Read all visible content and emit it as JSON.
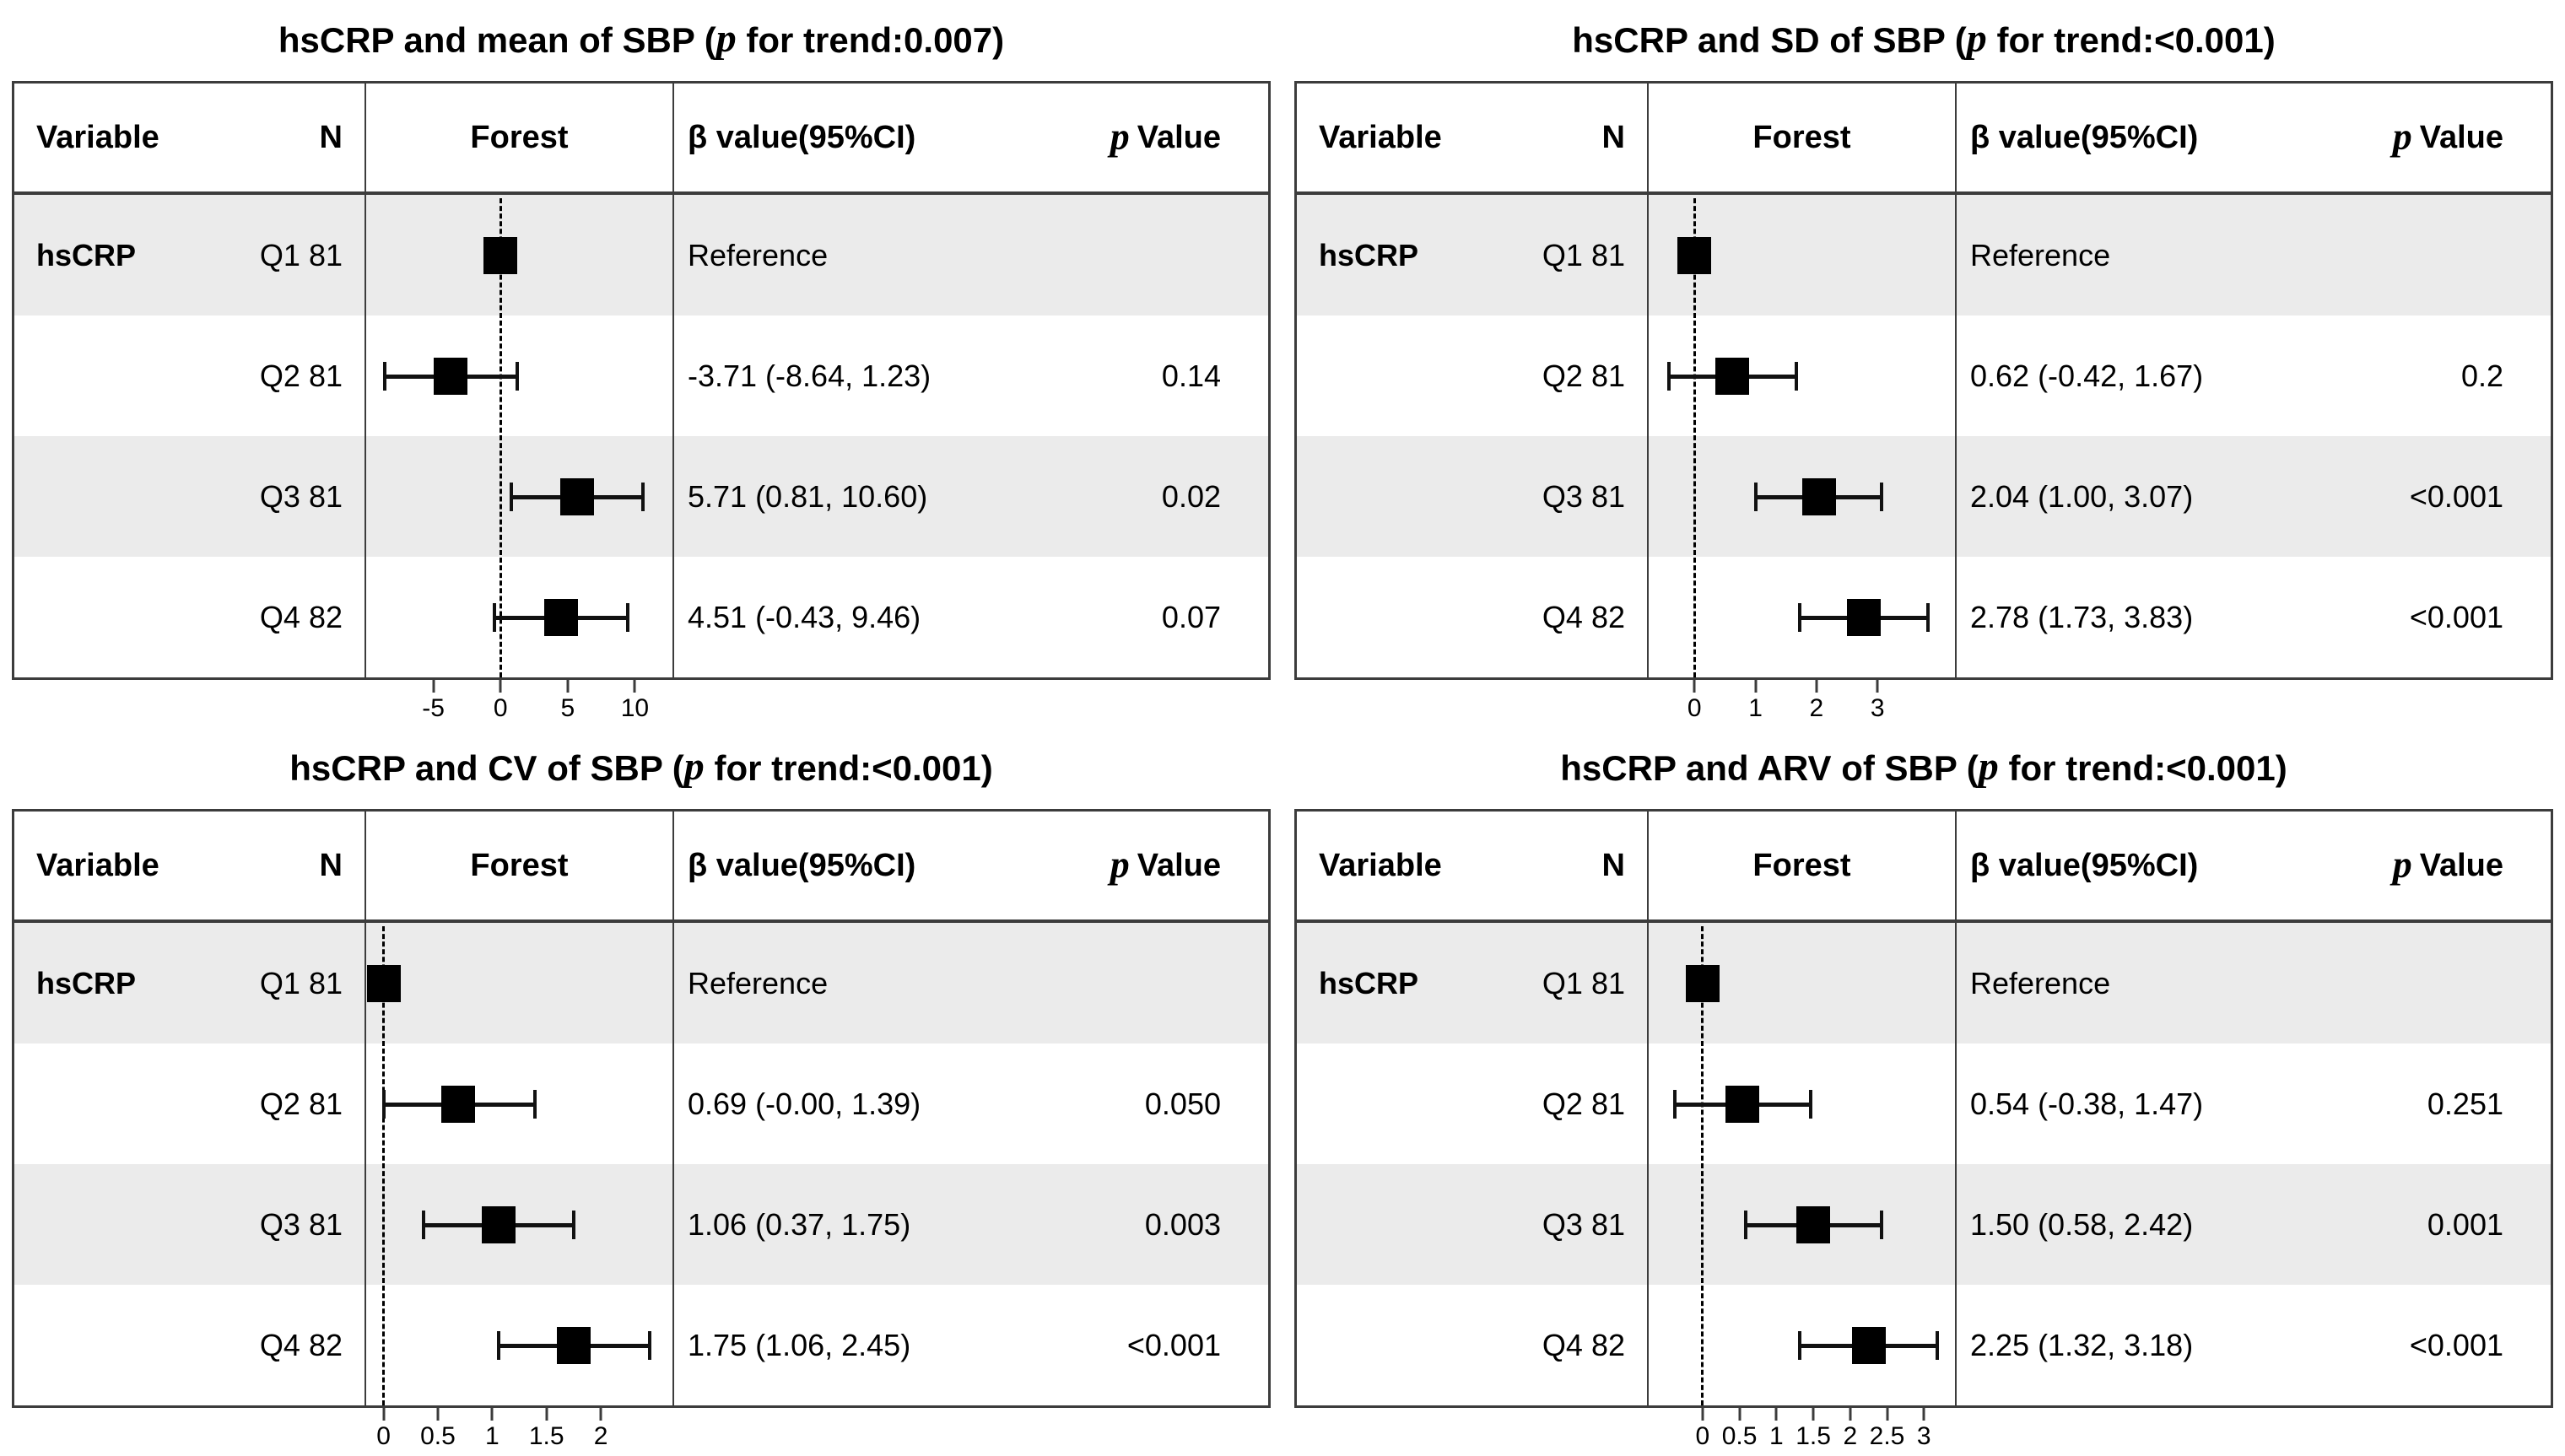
{
  "colors": {
    "stripe": "#ebebeb",
    "border": "#3c3c3c",
    "marker": "#000000",
    "background": "#ffffff"
  },
  "chart_data": [
    {
      "type": "forest",
      "title": "hsCRP and mean of SBP (p for trend:0.007)",
      "title_pre": "hsCRP and mean of SBP (",
      "title_p": "p",
      "title_post": " for trend:0.007)",
      "p_for_trend": "0.007",
      "columns": {
        "variable": "Variable",
        "n": "N",
        "forest": "Forest",
        "beta": "β value(95%CI)",
        "p_italic": "p",
        "p_rest": "Value"
      },
      "rows": [
        {
          "variable": "hsCRP",
          "group": "Q1",
          "n": "81",
          "beta_text": "Reference",
          "p_text": "",
          "est": 0,
          "lo": null,
          "hi": null,
          "reference": true
        },
        {
          "variable": "",
          "group": "Q2",
          "n": "81",
          "beta_text": "-3.71 (-8.64, 1.23)",
          "p_text": "0.14",
          "est": -3.71,
          "lo": -8.64,
          "hi": 1.23,
          "reference": false
        },
        {
          "variable": "",
          "group": "Q3",
          "n": "81",
          "beta_text": "5.71 (0.81, 10.60)",
          "p_text": "0.02",
          "est": 5.71,
          "lo": 0.81,
          "hi": 10.6,
          "reference": false
        },
        {
          "variable": "",
          "group": "Q4",
          "n": "82",
          "beta_text": "4.51 (-0.43, 9.46)",
          "p_text": "0.07",
          "est": 4.51,
          "lo": -0.43,
          "hi": 9.46,
          "reference": false
        }
      ],
      "axis": {
        "min": -10,
        "max": 12.8,
        "zero_line": 0,
        "ticks": [
          -5,
          0,
          5,
          10
        ],
        "tick_labels": [
          "-5",
          "0",
          "5",
          "10"
        ]
      }
    },
    {
      "type": "forest",
      "title": "hsCRP and SD of SBP (p for trend:<0.001)",
      "title_pre": "hsCRP and SD of SBP (",
      "title_p": "p",
      "title_post": " for trend:<0.001)",
      "p_for_trend": "<0.001",
      "columns": {
        "variable": "Variable",
        "n": "N",
        "forest": "Forest",
        "beta": "β value(95%CI)",
        "p_italic": "p",
        "p_rest": "Value"
      },
      "rows": [
        {
          "variable": "hsCRP",
          "group": "Q1",
          "n": "81",
          "beta_text": "Reference",
          "p_text": "",
          "est": 0,
          "lo": null,
          "hi": null,
          "reference": true
        },
        {
          "variable": "",
          "group": "Q2",
          "n": "81",
          "beta_text": "0.62 (-0.42, 1.67)",
          "p_text": "0.2",
          "est": 0.62,
          "lo": -0.42,
          "hi": 1.67,
          "reference": false
        },
        {
          "variable": "",
          "group": "Q3",
          "n": "81",
          "beta_text": "2.04 (1.00, 3.07)",
          "p_text": "<0.001",
          "est": 2.04,
          "lo": 1.0,
          "hi": 3.07,
          "reference": false
        },
        {
          "variable": "",
          "group": "Q4",
          "n": "82",
          "beta_text": "2.78 (1.73, 3.83)",
          "p_text": "<0.001",
          "est": 2.78,
          "lo": 1.73,
          "hi": 3.83,
          "reference": false
        }
      ],
      "axis": {
        "min": -0.75,
        "max": 4.27,
        "zero_line": 0,
        "ticks": [
          0,
          1,
          2,
          3
        ],
        "tick_labels": [
          "0",
          "1",
          "2",
          "3"
        ]
      }
    },
    {
      "type": "forest",
      "title": "hsCRP and CV of SBP (p for trend:<0.001)",
      "title_pre": "hsCRP and CV of SBP (",
      "title_p": "p",
      "title_post": " for trend:<0.001)",
      "p_for_trend": "<0.001",
      "columns": {
        "variable": "Variable",
        "n": "N",
        "forest": "Forest",
        "beta": "β value(95%CI)",
        "p_italic": "p",
        "p_rest": "Value"
      },
      "rows": [
        {
          "variable": "hsCRP",
          "group": "Q1",
          "n": "81",
          "beta_text": "Reference",
          "p_text": "",
          "est": 0,
          "lo": null,
          "hi": null,
          "reference": true
        },
        {
          "variable": "",
          "group": "Q2",
          "n": "81",
          "beta_text": "0.69 (-0.00, 1.39)",
          "p_text": "0.050",
          "est": 0.69,
          "lo": -0.0,
          "hi": 1.39,
          "reference": false
        },
        {
          "variable": "",
          "group": "Q3",
          "n": "81",
          "beta_text": "1.06 (0.37, 1.75)",
          "p_text": "0.003",
          "est": 1.06,
          "lo": 0.37,
          "hi": 1.75,
          "reference": false
        },
        {
          "variable": "",
          "group": "Q4",
          "n": "82",
          "beta_text": "1.75 (1.06, 2.45)",
          "p_text": "<0.001",
          "est": 1.75,
          "lo": 1.06,
          "hi": 2.45,
          "reference": false
        }
      ],
      "axis": {
        "min": -0.16,
        "max": 2.66,
        "zero_line": 0,
        "ticks": [
          0,
          0.5,
          1,
          1.5,
          2
        ],
        "tick_labels": [
          "0",
          "0.5",
          "1",
          "1.5",
          "2"
        ]
      }
    },
    {
      "type": "forest",
      "title": "hsCRP and ARV of SBP (p for trend:<0.001)",
      "title_pre": "hsCRP and ARV of SBP (",
      "title_p": "p",
      "title_post": " for trend:<0.001)",
      "p_for_trend": "<0.001",
      "columns": {
        "variable": "Variable",
        "n": "N",
        "forest": "Forest",
        "beta": "β value(95%CI)",
        "p_italic": "p",
        "p_rest": "Value"
      },
      "rows": [
        {
          "variable": "hsCRP",
          "group": "Q1",
          "n": "81",
          "beta_text": "Reference",
          "p_text": "",
          "est": 0,
          "lo": null,
          "hi": null,
          "reference": true
        },
        {
          "variable": "",
          "group": "Q2",
          "n": "81",
          "beta_text": "0.54 (-0.38, 1.47)",
          "p_text": "0.251",
          "est": 0.54,
          "lo": -0.38,
          "hi": 1.47,
          "reference": false
        },
        {
          "variable": "",
          "group": "Q3",
          "n": "81",
          "beta_text": "1.50 (0.58, 2.42)",
          "p_text": "0.001",
          "est": 1.5,
          "lo": 0.58,
          "hi": 2.42,
          "reference": false
        },
        {
          "variable": "",
          "group": "Q4",
          "n": "82",
          "beta_text": "2.25 (1.32, 3.18)",
          "p_text": "<0.001",
          "est": 2.25,
          "lo": 1.32,
          "hi": 3.18,
          "reference": false
        }
      ],
      "axis": {
        "min": -0.73,
        "max": 3.42,
        "zero_line": 0,
        "ticks": [
          0,
          0.5,
          1,
          1.5,
          2,
          2.5,
          3
        ],
        "tick_labels": [
          "0",
          "0.5",
          "1",
          "1.5",
          "2",
          "2.5",
          "3"
        ]
      }
    }
  ]
}
